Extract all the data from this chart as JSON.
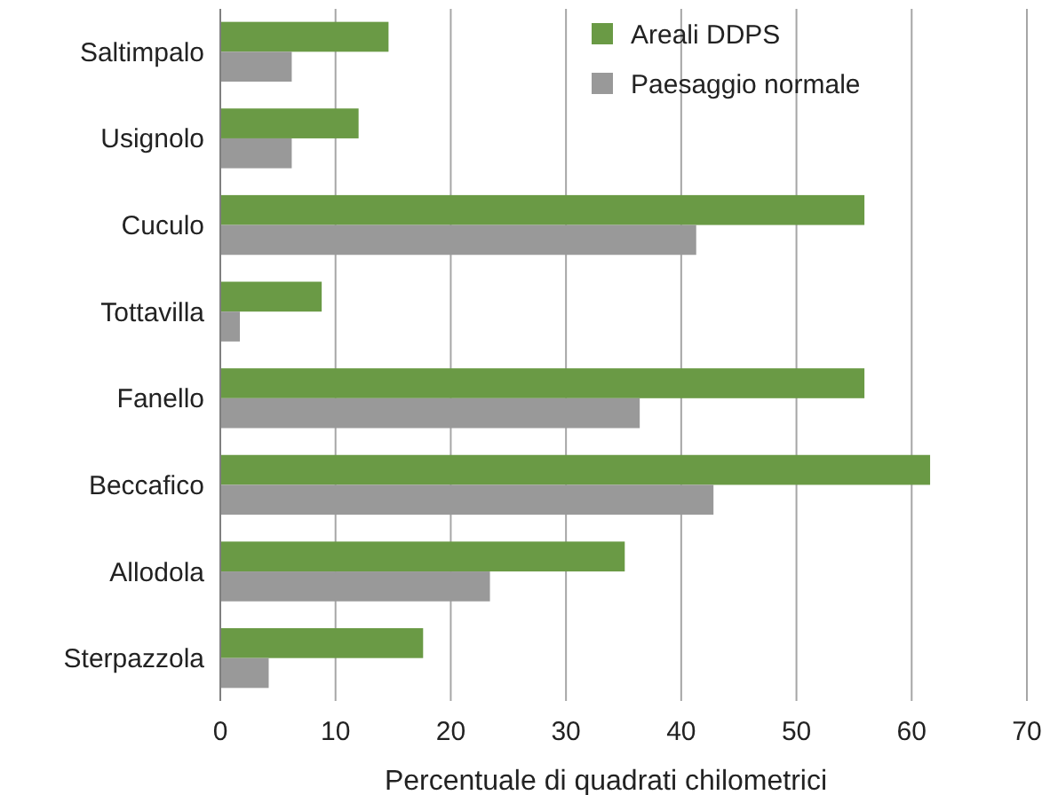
{
  "chart_data": {
    "type": "bar",
    "orientation": "horizontal",
    "xlabel": "Percentuale di quadrati chilometrici",
    "categories": [
      "Saltimpalo",
      "Usignolo",
      "Cuculo",
      "Tottavilla",
      "Fanello",
      "Beccafico",
      "Allodola",
      "Sterpazzola"
    ],
    "series": [
      {
        "name": "Areali DDPS",
        "color": "#6a9a45",
        "values": [
          14.6,
          12.0,
          55.9,
          8.8,
          55.9,
          61.6,
          35.1,
          17.6
        ]
      },
      {
        "name": "Paesaggio normale",
        "color": "#999999",
        "values": [
          6.2,
          6.2,
          41.3,
          1.7,
          36.4,
          42.8,
          23.4,
          4.2
        ]
      }
    ],
    "xlim": [
      0,
      70
    ],
    "xticks": [
      0,
      10,
      20,
      30,
      40,
      50,
      60,
      70
    ],
    "grid": "x",
    "legend": "top right"
  }
}
